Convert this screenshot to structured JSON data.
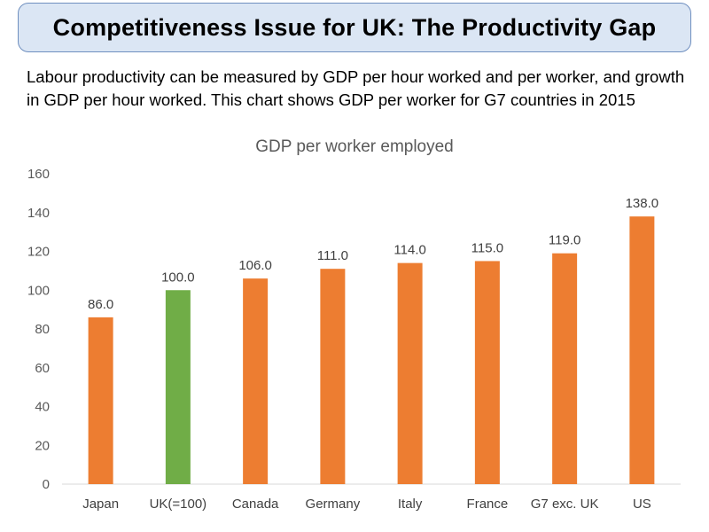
{
  "header": {
    "title": "Competitiveness Issue for UK: The Productivity Gap"
  },
  "description": "Labour productivity can be measured by GDP per hour worked and per worker, and growth in GDP per hour worked. This chart shows GDP per worker for G7 countries in 2015",
  "colors": {
    "bar_default": "#ed7d31",
    "bar_highlight": "#70ad47",
    "title_box_fill": "#dbe6f4",
    "title_box_border": "#6f8fbf"
  },
  "chart_data": {
    "type": "bar",
    "title": "GDP per worker employed",
    "categories": [
      "Japan",
      "UK(=100)",
      "Canada",
      "Germany",
      "Italy",
      "France",
      "G7 exc. UK",
      "US"
    ],
    "values": [
      86.0,
      100.0,
      106.0,
      111.0,
      114.0,
      115.0,
      119.0,
      138.0
    ],
    "data_labels": [
      "86.0",
      "100.0",
      "106.0",
      "111.0",
      "114.0",
      "115.0",
      "119.0",
      "138.0"
    ],
    "highlight_category": "UK(=100)",
    "ylim": [
      0,
      160
    ],
    "yticks": [
      0,
      20,
      40,
      60,
      80,
      100,
      120,
      140,
      160
    ],
    "grid": false,
    "legend": "none"
  }
}
